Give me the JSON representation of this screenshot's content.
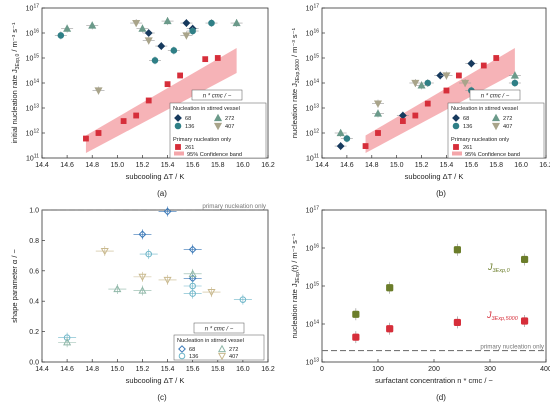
{
  "nstar_label": "n * cmc  /  −",
  "panels": [
    {
      "id": "a",
      "caption": "(a)",
      "xlabel": "subcooling ΔT  /  K",
      "ylabel_lines": [
        "initial nucleation rate J",
        "3Exp,0",
        "  /  m⁻³ s⁻¹"
      ],
      "legend_title": "Nucleation in stirred vessel",
      "legend_items": [
        {
          "label": "68",
          "color": "#173a5e",
          "marker": "diamond"
        },
        {
          "label": "272",
          "color": "#6b9a8a",
          "marker": "triangle"
        },
        {
          "label": "136",
          "color": "#2f7f86",
          "marker": "circle"
        },
        {
          "label": "407",
          "color": "#a9a48a",
          "marker": "invtriangle"
        }
      ],
      "primary_title": "Primary nucleation only",
      "primary_items": [
        {
          "label": "261",
          "color": "#d62e3a",
          "kind": "square"
        },
        {
          "label": "95% Confidence band",
          "color": "#f29a9e",
          "kind": "band"
        }
      ]
    },
    {
      "id": "b",
      "caption": "(b)",
      "xlabel": "subcooling ΔT  /  K",
      "ylabel_lines": [
        "nucleation rate J",
        "3Exp,5000",
        "  /  m⁻³ s⁻¹"
      ],
      "legend_title": "Nucleation in stirred vessel",
      "legend_items": [
        {
          "label": "68",
          "color": "#173a5e",
          "marker": "diamond"
        },
        {
          "label": "272",
          "color": "#6b9a8a",
          "marker": "triangle"
        },
        {
          "label": "136",
          "color": "#2f7f86",
          "marker": "circle"
        },
        {
          "label": "407",
          "color": "#a9a48a",
          "marker": "invtriangle"
        }
      ],
      "primary_title": "Primary nucleation only",
      "primary_items": [
        {
          "label": "261",
          "color": "#d62e3a",
          "kind": "square"
        },
        {
          "label": "95% Confidence band",
          "color": "#f29a9e",
          "kind": "band"
        }
      ]
    },
    {
      "id": "c",
      "caption": "(c)",
      "xlabel": "subcooling ΔT  /  K",
      "ylabel_lines": [
        "shape parameter α  /  −"
      ],
      "ref_label": "primary nucleation only",
      "legend_title": "Nucleation in stirred vessel",
      "legend_items": [
        {
          "label": "68",
          "color": "#3a78b7",
          "marker": "diamond-open"
        },
        {
          "label": "272",
          "color": "#8fb7a8",
          "marker": "triangle-open"
        },
        {
          "label": "136",
          "color": "#6fb6c9",
          "marker": "circle-open"
        },
        {
          "label": "407",
          "color": "#c9b98e",
          "marker": "invtriangle-open"
        }
      ]
    },
    {
      "id": "d",
      "caption": "(d)",
      "xlabel": "surfactant concentration n * cmc  /  −",
      "ylabel_lines": [
        "nucleation rate J",
        "3Exp",
        "(t)  /  m⁻³ s⁻¹"
      ],
      "ref_label": "primary nucleation only",
      "series_labels": [
        {
          "main": "J",
          "sub": "3Exp,0",
          "color": "#6b7d2a"
        },
        {
          "main": "J",
          "sub": "3Exp,5000",
          "color": "#d62e3a"
        }
      ]
    }
  ],
  "chart_data": [
    {
      "type": "scatter",
      "panel": "a",
      "xlim": [
        14.4,
        16.2
      ],
      "ylim_log10": [
        11,
        17
      ],
      "x_ticks": [
        "14.4",
        "14.6",
        "14.8",
        "15.0",
        "15.2",
        "15.4",
        "15.6",
        "15.8",
        "16.0",
        "16.2"
      ],
      "y_ticks": [
        "10¹¹",
        "10¹²",
        "10¹³",
        "10¹⁴",
        "10¹⁵",
        "10¹⁶",
        "10¹⁷"
      ],
      "confidence_band": {
        "x": [
          14.75,
          15.95
        ],
        "lower_log10": [
          11.2,
          14.4
        ],
        "upper_log10": [
          11.9,
          15.4
        ]
      },
      "series": [
        {
          "name": "68",
          "points": [
            [
              15.55,
              2.5e+16
            ],
            [
              15.25,
              1e+16
            ],
            [
              15.6,
              1.5e+16
            ],
            [
              15.35,
              3000000000000000.0
            ]
          ]
        },
        {
          "name": "136",
          "points": [
            [
              14.55,
              8000000000000000.0
            ],
            [
              15.6,
              1.2e+16
            ],
            [
              15.45,
              2000000000000000.0
            ],
            [
              15.3,
              800000000000000.0
            ],
            [
              15.75,
              2.5e+16
            ]
          ]
        },
        {
          "name": "272",
          "points": [
            [
              14.6,
              1.5e+16
            ],
            [
              14.8,
              2e+16
            ],
            [
              15.4,
              3e+16
            ],
            [
              15.95,
              2.5e+16
            ],
            [
              15.2,
              1.5e+16
            ]
          ]
        },
        {
          "name": "407",
          "points": [
            [
              14.85,
              50000000000000.0
            ],
            [
              15.25,
              5000000000000000.0
            ],
            [
              15.55,
              8000000000000000.0
            ],
            [
              15.15,
              2.5e+16
            ]
          ]
        },
        {
          "name": "261",
          "points": [
            [
              14.75,
              600000000000.0
            ],
            [
              14.85,
              1000000000000.0
            ],
            [
              15.05,
              3000000000000.0
            ],
            [
              15.15,
              5000000000000.0
            ],
            [
              15.25,
              20000000000000.0
            ],
            [
              15.4,
              90000000000000.0
            ],
            [
              15.5,
              200000000000000.0
            ],
            [
              15.7,
              900000000000000.0
            ],
            [
              15.8,
              1000000000000000.0
            ]
          ]
        }
      ]
    },
    {
      "type": "scatter",
      "panel": "b",
      "xlim": [
        14.4,
        16.2
      ],
      "ylim_log10": [
        11,
        17
      ],
      "x_ticks": [
        "14.4",
        "14.6",
        "14.8",
        "15.0",
        "15.2",
        "15.4",
        "15.6",
        "15.8",
        "16.0",
        "16.2"
      ],
      "y_ticks": [
        "10¹¹",
        "10¹²",
        "10¹³",
        "10¹⁴",
        "10¹⁵",
        "10¹⁶",
        "10¹⁷"
      ],
      "confidence_band": {
        "x": [
          14.75,
          15.95
        ],
        "lower_log10": [
          11.2,
          14.4
        ],
        "upper_log10": [
          11.9,
          15.4
        ]
      },
      "series": [
        {
          "name": "68",
          "points": [
            [
              14.55,
              300000000000.0
            ],
            [
              15.05,
              5000000000000.0
            ],
            [
              15.35,
              200000000000000.0
            ],
            [
              15.6,
              600000000000000.0
            ]
          ]
        },
        {
          "name": "136",
          "points": [
            [
              14.6,
              600000000000.0
            ],
            [
              15.25,
              100000000000000.0
            ],
            [
              15.6,
              50000000000000.0
            ],
            [
              15.95,
              100000000000000.0
            ]
          ]
        },
        {
          "name": "272",
          "points": [
            [
              14.55,
              1000000000000.0
            ],
            [
              14.85,
              6000000000000.0
            ],
            [
              15.2,
              80000000000000.0
            ],
            [
              15.95,
              200000000000000.0
            ]
          ]
        },
        {
          "name": "407",
          "points": [
            [
              14.85,
              15000000000000.0
            ],
            [
              15.15,
              100000000000000.0
            ],
            [
              15.4,
              200000000000000.0
            ],
            [
              15.55,
              100000000000000.0
            ]
          ]
        },
        {
          "name": "261",
          "points": [
            [
              14.75,
              300000000000.0
            ],
            [
              14.85,
              1000000000000.0
            ],
            [
              15.05,
              3000000000000.0
            ],
            [
              15.15,
              5000000000000.0
            ],
            [
              15.25,
              15000000000000.0
            ],
            [
              15.4,
              50000000000000.0
            ],
            [
              15.5,
              200000000000000.0
            ],
            [
              15.7,
              500000000000000.0
            ],
            [
              15.8,
              1000000000000000.0
            ]
          ]
        }
      ]
    },
    {
      "type": "scatter",
      "panel": "c",
      "xlim": [
        14.4,
        16.2
      ],
      "ylim": [
        0,
        1.0
      ],
      "x_ticks": [
        "14.4",
        "14.6",
        "14.8",
        "15.0",
        "15.2",
        "15.4",
        "15.6",
        "15.8",
        "16.0",
        "16.2"
      ],
      "y_ticks": [
        "0.0",
        "0.2",
        "0.4",
        "0.6",
        "0.8",
        "1.0"
      ],
      "reference_y": 1.0,
      "series": [
        {
          "name": "68",
          "points": [
            [
              15.2,
              0.84
            ],
            [
              15.4,
              0.99
            ],
            [
              15.6,
              0.74
            ],
            [
              15.6,
              0.55
            ]
          ]
        },
        {
          "name": "136",
          "points": [
            [
              14.6,
              0.16
            ],
            [
              15.25,
              0.71
            ],
            [
              15.6,
              0.5
            ],
            [
              15.6,
              0.45
            ],
            [
              16.0,
              0.41
            ]
          ]
        },
        {
          "name": "272",
          "points": [
            [
              14.6,
              0.13
            ],
            [
              15.0,
              0.48
            ],
            [
              15.2,
              0.47
            ],
            [
              15.6,
              0.58
            ]
          ]
        },
        {
          "name": "407",
          "points": [
            [
              14.9,
              0.73
            ],
            [
              15.2,
              0.56
            ],
            [
              15.4,
              0.54
            ],
            [
              15.75,
              0.46
            ]
          ]
        }
      ]
    },
    {
      "type": "scatter",
      "panel": "d",
      "xlim": [
        0,
        450
      ],
      "ylim_log10": [
        13,
        17
      ],
      "x_ticks": [
        "0",
        "100",
        "200",
        "300",
        "400"
      ],
      "y_ticks": [
        "10¹³",
        "10¹⁴",
        "10¹⁵",
        "10¹⁶",
        "10¹⁷"
      ],
      "reference_y": 20000000000000.0,
      "series": [
        {
          "name": "J3Exp,0",
          "points": [
            [
              68,
              180000000000000.0
            ],
            [
              136,
              900000000000000.0
            ],
            [
              272,
              9000000000000000.0
            ],
            [
              407,
              5000000000000000.0
            ]
          ]
        },
        {
          "name": "J3Exp,5000",
          "points": [
            [
              68,
              45000000000000.0
            ],
            [
              136,
              75000000000000.0
            ],
            [
              272,
              110000000000000.0
            ],
            [
              407,
              120000000000000.0
            ]
          ]
        }
      ]
    }
  ]
}
